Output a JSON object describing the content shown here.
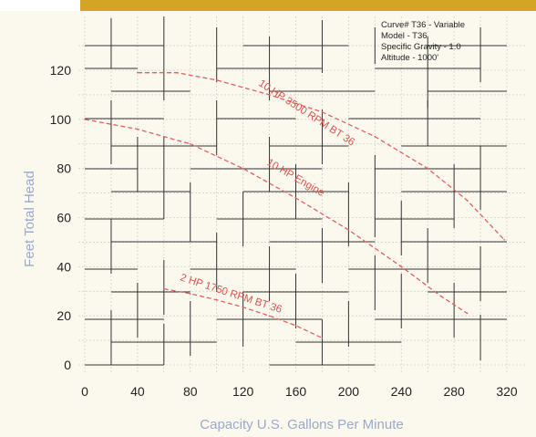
{
  "chart_data": {
    "type": "line",
    "title": "",
    "xlabel": "Capacity U.S. Gallons Per Minute",
    "ylabel": "Feet Total Head",
    "xlim": [
      0,
      320
    ],
    "ylim": [
      0,
      130
    ],
    "x_ticks": [
      "0",
      "40",
      "80",
      "120",
      "160",
      "200",
      "240",
      "280",
      "320"
    ],
    "y_ticks": [
      "0",
      "20",
      "40",
      "60",
      "80",
      "100",
      "120"
    ],
    "grid": true,
    "info_box": [
      "Curve# T36 - Variable",
      "Model - T36",
      "Specific Gravity - 1.0",
      "Altitude - 1000'"
    ],
    "series": [
      {
        "name": "10 HP 3500 RPM BT 36",
        "x": [
          40,
          70,
          100,
          140,
          180,
          220,
          260,
          290,
          318
        ],
        "y": [
          119,
          119,
          116,
          110,
          103,
          93,
          80,
          67,
          51
        ]
      },
      {
        "name": "10 HP Engine",
        "x": [
          0,
          40,
          80,
          120,
          160,
          200,
          240,
          270,
          290
        ],
        "y": [
          100,
          96,
          90,
          80,
          68,
          55,
          40,
          28,
          21
        ]
      },
      {
        "name": "2 HP 1750 RPM BT 36",
        "x": [
          60,
          80,
          100,
          120,
          140,
          160,
          180
        ],
        "y": [
          31,
          29,
          26.5,
          23.5,
          20,
          16,
          11
        ]
      }
    ],
    "colors": {
      "curves": "#e06060",
      "axis_labels": "#9aa8cc",
      "background": "#fbf9ee",
      "top_bar": "#d4a524",
      "grid": "#cfcfcf",
      "grid_major": "#333333"
    }
  }
}
